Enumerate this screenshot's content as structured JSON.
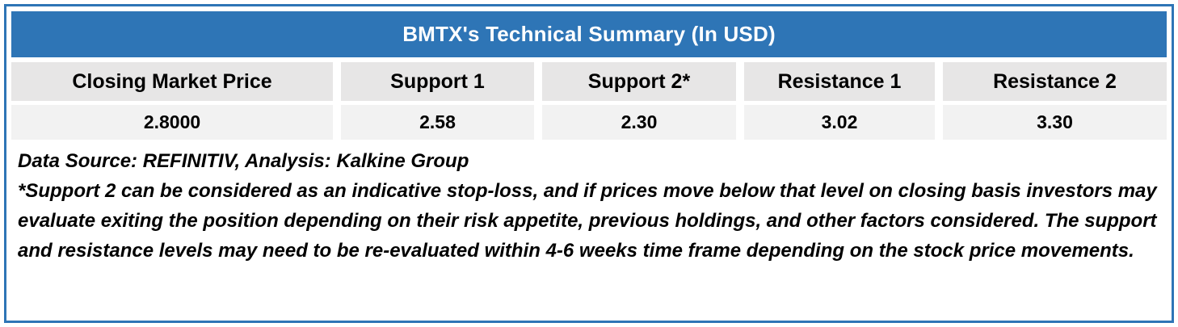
{
  "table": {
    "title": "BMTX's Technical Summary (In USD)",
    "columns": [
      "Closing Market Price",
      "Support 1",
      "Support 2*",
      "Resistance 1",
      "Resistance 2"
    ],
    "values": [
      "2.8000",
      "2.58",
      "2.30",
      "3.02",
      "3.30"
    ]
  },
  "notes": {
    "source": "Data Source: REFINITIV, Analysis: Kalkine Group",
    "disclaimer": "*Support 2 can be considered as an indicative stop-loss, and if prices move below that level on closing basis investors may evaluate exiting the position depending on their risk appetite, previous holdings, and other factors considered. The support and resistance levels may need to be re-evaluated within 4-6 weeks time frame depending on the stock price movements."
  },
  "colors": {
    "accent_blue": "#2E75B6",
    "header_gray": "#E7E6E6",
    "value_gray": "#F2F2F2"
  }
}
